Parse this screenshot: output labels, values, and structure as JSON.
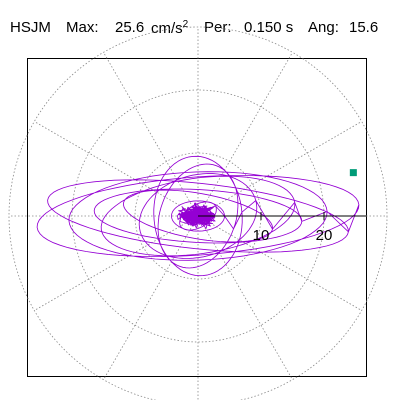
{
  "header": {
    "station": "HSJM",
    "max_label": "Max:",
    "max_value": "25.6",
    "max_unit": "cm/s",
    "max_unit_exp": "2",
    "per_label": "Per:",
    "per_value": "0.150 s",
    "ang_label": "Ang:",
    "ang_value": "15.6"
  },
  "chart_data": {
    "type": "scatter",
    "subtype": "polar-hodogram",
    "title": "HSJM   Max: 25.6 cm/s2  Per: 0.150 s  Ang: 15.6",
    "radial_rings": [
      10,
      20,
      30
    ],
    "radial_tick_labels": [
      "10",
      "20"
    ],
    "angular_spokes_deg": [
      0,
      30,
      60,
      90,
      120,
      150,
      180,
      210,
      240,
      270,
      300,
      330
    ],
    "max_amplitude": 25.6,
    "max_angle_deg": 15.6,
    "marker": {
      "r": 25.6,
      "theta_deg": 15.6
    },
    "grid": true,
    "colors": {
      "trace": "#9400d3",
      "marker": "#009b77",
      "grid": "#888888",
      "axis": "#000000"
    },
    "orbits": [
      {
        "a": 25.6,
        "b": 6.2,
        "rot_deg": 4
      },
      {
        "a": 24.0,
        "b": 5.2,
        "rot_deg": -6
      },
      {
        "a": 20.5,
        "b": 7.0,
        "rot_deg": 2
      },
      {
        "a": 16.5,
        "b": 4.2,
        "rot_deg": -3
      },
      {
        "a": 15.5,
        "b": 6.0,
        "rot_deg": 8
      },
      {
        "a": 12.0,
        "b": 3.6,
        "rot_deg": -10
      },
      {
        "a": 9.5,
        "b": 6.5,
        "rot_deg": 15
      },
      {
        "a": 7.0,
        "b": 9.5,
        "rot_deg": 5
      },
      {
        "a": 6.0,
        "b": 8.5,
        "rot_deg": -20
      },
      {
        "a": 4.2,
        "b": 2.4,
        "rot_deg": 0
      },
      {
        "a": 3.2,
        "b": 1.8,
        "rot_deg": 30
      }
    ]
  }
}
